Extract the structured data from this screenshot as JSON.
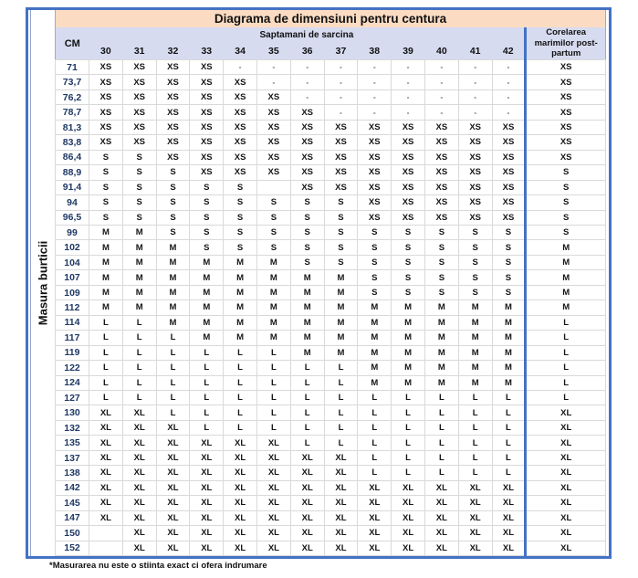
{
  "title": "Diagrama de dimensiuni pentru centura",
  "side_label": "Masura burticii",
  "footnote": "*Masurarea nu este o stiinta exact ci ofera indrumare",
  "header": {
    "cm_label": "CM",
    "weeks_label": "Saptamani de sarcina",
    "postpartum_label": "Corelarea marimilor post-partum"
  },
  "colors": {
    "title-bg": "#FBDCC3",
    "header-bg": "#D6DBEF",
    "frame-blue": "#4472C4",
    "row-label": "#1F3864",
    "grid-line": "#D9D9D9"
  },
  "chart_data": {
    "type": "table",
    "title": "Diagrama de dimensiuni pentru centura",
    "row_header": "CM",
    "columns": [
      "30",
      "31",
      "32",
      "33",
      "34",
      "35",
      "36",
      "37",
      "38",
      "39",
      "40",
      "41",
      "42"
    ],
    "postpartum_column": "Corelarea marimilor post-partum",
    "rows": [
      {
        "cm": "71",
        "values": [
          "XS",
          "XS",
          "XS",
          "XS",
          "-",
          "-",
          "-",
          "-",
          "-",
          "-",
          "-",
          "-",
          "-"
        ],
        "post": "XS"
      },
      {
        "cm": "73,7",
        "values": [
          "XS",
          "XS",
          "XS",
          "XS",
          "XS",
          "-",
          "-",
          "-",
          "-",
          "-",
          "-",
          "-",
          "-"
        ],
        "post": "XS"
      },
      {
        "cm": "76,2",
        "values": [
          "XS",
          "XS",
          "XS",
          "XS",
          "XS",
          "XS",
          "-",
          "-",
          "-",
          "-",
          "-",
          "-",
          "-"
        ],
        "post": "XS"
      },
      {
        "cm": "78,7",
        "values": [
          "XS",
          "XS",
          "XS",
          "XS",
          "XS",
          "XS",
          "XS",
          "-",
          "-",
          "-",
          "-",
          "-",
          "-"
        ],
        "post": "XS"
      },
      {
        "cm": "81,3",
        "values": [
          "XS",
          "XS",
          "XS",
          "XS",
          "XS",
          "XS",
          "XS",
          "XS",
          "XS",
          "XS",
          "XS",
          "XS",
          "XS"
        ],
        "post": "XS"
      },
      {
        "cm": "83,8",
        "values": [
          "XS",
          "XS",
          "XS",
          "XS",
          "XS",
          "XS",
          "XS",
          "XS",
          "XS",
          "XS",
          "XS",
          "XS",
          "XS"
        ],
        "post": "XS"
      },
      {
        "cm": "86,4",
        "values": [
          "S",
          "S",
          "XS",
          "XS",
          "XS",
          "XS",
          "XS",
          "XS",
          "XS",
          "XS",
          "XS",
          "XS",
          "XS"
        ],
        "post": "XS"
      },
      {
        "cm": "88,9",
        "values": [
          "S",
          "S",
          "S",
          "XS",
          "XS",
          "XS",
          "XS",
          "XS",
          "XS",
          "XS",
          "XS",
          "XS",
          "XS"
        ],
        "post": "S"
      },
      {
        "cm": "91,4",
        "values": [
          "S",
          "S",
          "S",
          "S",
          "S",
          "",
          "XS",
          "XS",
          "XS",
          "XS",
          "XS",
          "XS",
          "XS"
        ],
        "post": "S"
      },
      {
        "cm": "94",
        "values": [
          "S",
          "S",
          "S",
          "S",
          "S",
          "S",
          "S",
          "S",
          "XS",
          "XS",
          "XS",
          "XS",
          "XS"
        ],
        "post": "S"
      },
      {
        "cm": "96,5",
        "values": [
          "S",
          "S",
          "S",
          "S",
          "S",
          "S",
          "S",
          "S",
          "XS",
          "XS",
          "XS",
          "XS",
          "XS"
        ],
        "post": "S"
      },
      {
        "cm": "99",
        "values": [
          "M",
          "M",
          "S",
          "S",
          "S",
          "S",
          "S",
          "S",
          "S",
          "S",
          "S",
          "S",
          "S"
        ],
        "post": "S"
      },
      {
        "cm": "102",
        "values": [
          "M",
          "M",
          "M",
          "S",
          "S",
          "S",
          "S",
          "S",
          "S",
          "S",
          "S",
          "S",
          "S"
        ],
        "post": "M"
      },
      {
        "cm": "104",
        "values": [
          "M",
          "M",
          "M",
          "M",
          "M",
          "M",
          "S",
          "S",
          "S",
          "S",
          "S",
          "S",
          "S"
        ],
        "post": "M"
      },
      {
        "cm": "107",
        "values": [
          "M",
          "M",
          "M",
          "M",
          "M",
          "M",
          "M",
          "M",
          "S",
          "S",
          "S",
          "S",
          "S"
        ],
        "post": "M"
      },
      {
        "cm": "109",
        "values": [
          "M",
          "M",
          "M",
          "M",
          "M",
          "M",
          "M",
          "M",
          "S",
          "S",
          "S",
          "S",
          "S"
        ],
        "post": "M"
      },
      {
        "cm": "112",
        "values": [
          "M",
          "M",
          "M",
          "M",
          "M",
          "M",
          "M",
          "M",
          "M",
          "M",
          "M",
          "M",
          "M"
        ],
        "post": "M"
      },
      {
        "cm": "114",
        "values": [
          "L",
          "L",
          "M",
          "M",
          "M",
          "M",
          "M",
          "M",
          "M",
          "M",
          "M",
          "M",
          "M"
        ],
        "post": "L"
      },
      {
        "cm": "117",
        "values": [
          "L",
          "L",
          "L",
          "M",
          "M",
          "M",
          "M",
          "M",
          "M",
          "M",
          "M",
          "M",
          "M"
        ],
        "post": "L"
      },
      {
        "cm": "119",
        "values": [
          "L",
          "L",
          "L",
          "L",
          "L",
          "L",
          "M",
          "M",
          "M",
          "M",
          "M",
          "M",
          "M"
        ],
        "post": "L"
      },
      {
        "cm": "122",
        "values": [
          "L",
          "L",
          "L",
          "L",
          "L",
          "L",
          "L",
          "L",
          "M",
          "M",
          "M",
          "M",
          "M"
        ],
        "post": "L"
      },
      {
        "cm": "124",
        "values": [
          "L",
          "L",
          "L",
          "L",
          "L",
          "L",
          "L",
          "L",
          "M",
          "M",
          "M",
          "M",
          "M"
        ],
        "post": "L"
      },
      {
        "cm": "127",
        "values": [
          "L",
          "L",
          "L",
          "L",
          "L",
          "L",
          "L",
          "L",
          "L",
          "L",
          "L",
          "L",
          "L"
        ],
        "post": "L"
      },
      {
        "cm": "130",
        "values": [
          "XL",
          "XL",
          "L",
          "L",
          "L",
          "L",
          "L",
          "L",
          "L",
          "L",
          "L",
          "L",
          "L"
        ],
        "post": "XL"
      },
      {
        "cm": "132",
        "values": [
          "XL",
          "XL",
          "XL",
          "L",
          "L",
          "L",
          "L",
          "L",
          "L",
          "L",
          "L",
          "L",
          "L"
        ],
        "post": "XL"
      },
      {
        "cm": "135",
        "values": [
          "XL",
          "XL",
          "XL",
          "XL",
          "XL",
          "XL",
          "L",
          "L",
          "L",
          "L",
          "L",
          "L",
          "L"
        ],
        "post": "XL"
      },
      {
        "cm": "137",
        "values": [
          "XL",
          "XL",
          "XL",
          "XL",
          "XL",
          "XL",
          "XL",
          "XL",
          "L",
          "L",
          "L",
          "L",
          "L"
        ],
        "post": "XL"
      },
      {
        "cm": "138",
        "values": [
          "XL",
          "XL",
          "XL",
          "XL",
          "XL",
          "XL",
          "XL",
          "XL",
          "L",
          "L",
          "L",
          "L",
          "L"
        ],
        "post": "XL"
      },
      {
        "cm": "142",
        "values": [
          "XL",
          "XL",
          "XL",
          "XL",
          "XL",
          "XL",
          "XL",
          "XL",
          "XL",
          "XL",
          "XL",
          "XL",
          "XL"
        ],
        "post": "XL"
      },
      {
        "cm": "145",
        "values": [
          "XL",
          "XL",
          "XL",
          "XL",
          "XL",
          "XL",
          "XL",
          "XL",
          "XL",
          "XL",
          "XL",
          "XL",
          "XL"
        ],
        "post": "XL"
      },
      {
        "cm": "147",
        "values": [
          "XL",
          "XL",
          "XL",
          "XL",
          "XL",
          "XL",
          "XL",
          "XL",
          "XL",
          "XL",
          "XL",
          "XL",
          "XL"
        ],
        "post": "XL"
      },
      {
        "cm": "150",
        "values": [
          "",
          "XL",
          "XL",
          "XL",
          "XL",
          "XL",
          "XL",
          "XL",
          "XL",
          "XL",
          "XL",
          "XL",
          "XL"
        ],
        "post": "XL"
      },
      {
        "cm": "152",
        "values": [
          "",
          "XL",
          "XL",
          "XL",
          "XL",
          "XL",
          "XL",
          "XL",
          "XL",
          "XL",
          "XL",
          "XL",
          "XL"
        ],
        "post": "XL"
      }
    ]
  }
}
